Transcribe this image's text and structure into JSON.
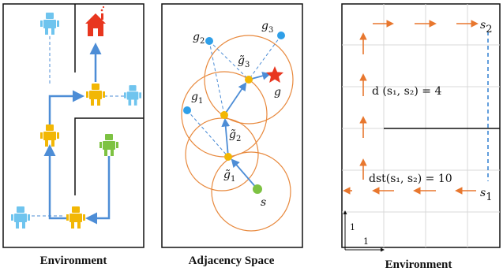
{
  "colors": {
    "blue_arrow": "#4d8dd6",
    "orange": "#e8772e",
    "gold": "#f2b705",
    "light_blue": "#6fc4ee",
    "green": "#7dc242",
    "red": "#e8361f",
    "grid": "#d9d9d9"
  },
  "panels": {
    "left": {
      "caption": "Environment",
      "icons": [
        "robot-icon",
        "house-icon"
      ]
    },
    "middle": {
      "caption": "Adjacency Space",
      "labels": {
        "g1": "g",
        "g1_sub": "1",
        "g2": "g",
        "g2_sub": "2",
        "g3": "g",
        "g3_sub": "3",
        "gt1": "g̃",
        "gt1_sub": "1",
        "gt2": "g̃",
        "gt2_sub": "2",
        "gt3": "g̃",
        "gt3_sub": "3",
        "g": "g",
        "s": "s"
      },
      "icons": [
        "star-icon"
      ]
    },
    "right": {
      "caption": "Environment",
      "s1": "s",
      "s1_sub": "1",
      "s2": "s",
      "s2_sub": "2",
      "distance_label": "d (s₁, s₂) = 4",
      "st_distance_label": "dst(s₁, s₂) = 10",
      "scale_x": "1",
      "scale_y": "1"
    }
  }
}
